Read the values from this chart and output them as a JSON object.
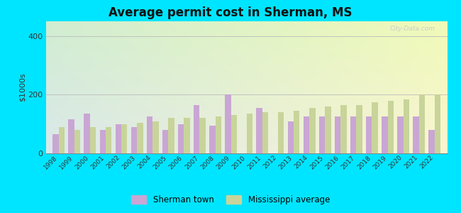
{
  "title": "Average permit cost in Sherman, MS",
  "ylabel": "$1000s",
  "years": [
    1998,
    1999,
    2000,
    2001,
    2002,
    2003,
    2004,
    2005,
    2006,
    2007,
    2008,
    2009,
    2010,
    2011,
    2012,
    2013,
    2014,
    2015,
    2016,
    2017,
    2018,
    2019,
    2020,
    2021,
    2022
  ],
  "sherman": [
    65,
    115,
    135,
    80,
    100,
    90,
    125,
    80,
    100,
    165,
    95,
    200,
    null,
    155,
    null,
    110,
    125,
    125,
    125,
    125,
    125,
    125,
    125,
    125,
    80
  ],
  "ms_avg": [
    90,
    80,
    90,
    90,
    100,
    105,
    110,
    120,
    120,
    120,
    125,
    130,
    135,
    140,
    140,
    145,
    155,
    160,
    165,
    165,
    175,
    180,
    185,
    200,
    200
  ],
  "sherman_color": "#c9a6d4",
  "ms_avg_color": "#c8d49a",
  "outer_bg": "#00e5ff",
  "ylim": [
    0,
    450
  ],
  "yticks": [
    0,
    200,
    400
  ],
  "bar_width": 0.38,
  "legend_sherman": "Sherman town",
  "legend_ms": "Mississippi average"
}
